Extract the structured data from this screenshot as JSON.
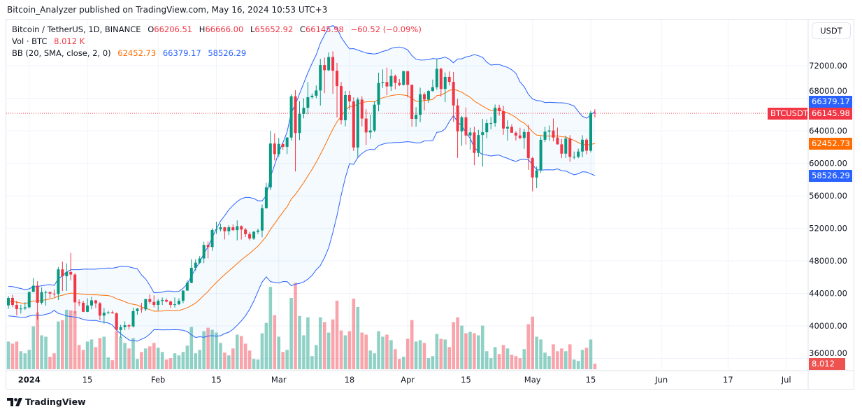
{
  "header": {
    "published": "Bitcoin_Analyzer published on TradingView.com, May 16, 2024 10:53 UTC+3"
  },
  "legend": {
    "symbol": "Bitcoin / TetherUS, 1D, BINANCE",
    "open_label": "O",
    "open": "66206.51",
    "high_label": "H",
    "high": "66666.00",
    "low_label": "L",
    "low": "65652.92",
    "close_label": "C",
    "close": "66145.98",
    "change": "−60.52 (−0.09%)",
    "vol_label": "Vol · BTC",
    "vol": "8.012 K",
    "bb_label": "BB (20, SMA, close, 2, 0)",
    "bb_basis": "62452.73",
    "bb_upper": "66379.17",
    "bb_lower": "58526.29"
  },
  "axis": {
    "currency_button": "USDT",
    "price_ticks": [
      "72000.00",
      "68000.00",
      "64000.00",
      "60000.00",
      "56000.00",
      "52000.00",
      "48000.00",
      "44000.00",
      "40000.00",
      "36000.00"
    ],
    "time_ticks": [
      {
        "label": "2024",
        "date": "2024-01-01",
        "bold": true
      },
      {
        "label": "15",
        "date": "2024-01-15"
      },
      {
        "label": "Feb",
        "date": "2024-02-01"
      },
      {
        "label": "15",
        "date": "2024-02-15"
      },
      {
        "label": "Mar",
        "date": "2024-03-01"
      },
      {
        "label": "18",
        "date": "2024-03-18"
      },
      {
        "label": "Apr",
        "date": "2024-04-01"
      },
      {
        "label": "15",
        "date": "2024-04-15"
      },
      {
        "label": "May",
        "date": "2024-05-01"
      },
      {
        "label": "15",
        "date": "2024-05-15"
      },
      {
        "label": "Jun",
        "date": "2024-06-01"
      },
      {
        "label": "17",
        "date": "2024-06-17"
      },
      {
        "label": "Jul",
        "date": "2024-07-01"
      }
    ],
    "labels": {
      "bb_upper": "66379.17",
      "symbol_tag": "BTCUSDT",
      "last_price": "66145.98",
      "bb_basis": "62452.73",
      "bb_lower": "58526.29",
      "volume": "8.012 K"
    }
  },
  "footer": {
    "brand": "TradingView"
  },
  "colors": {
    "up": "#089981",
    "down": "#f23645",
    "bb_band": "#2962ff",
    "bb_basis": "#ff6d00",
    "last_price": "#f23645"
  },
  "chart_data": {
    "type": "candlestick",
    "symbol": "BTCUSDT",
    "interval": "1D",
    "ylim": [
      35000,
      75500
    ],
    "grid": true,
    "indicators": [
      "Volume",
      "Bollinger Bands (20, SMA, close, 2, 0)"
    ],
    "columns": [
      "date",
      "open",
      "high",
      "low",
      "close",
      "volume_k"
    ],
    "candles": [
      [
        "2023-12-27",
        42520,
        43680,
        42100,
        43442,
        40
      ],
      [
        "2023-12-28",
        43442,
        43800,
        42300,
        42581,
        37
      ],
      [
        "2023-12-29",
        42581,
        43100,
        41300,
        42066,
        40
      ],
      [
        "2023-12-30",
        42066,
        42600,
        41520,
        42140,
        26
      ],
      [
        "2023-12-31",
        42140,
        42900,
        41960,
        42283,
        23
      ],
      [
        "2024-01-01",
        42283,
        44180,
        42180,
        44179,
        28
      ],
      [
        "2024-01-02",
        44179,
        45880,
        44180,
        44946,
        62
      ],
      [
        "2024-01-03",
        44946,
        45500,
        40750,
        42845,
        82
      ],
      [
        "2024-01-04",
        42845,
        44730,
        42630,
        44151,
        49
      ],
      [
        "2024-01-05",
        44151,
        44330,
        42500,
        44162,
        47
      ],
      [
        "2024-01-06",
        44162,
        44200,
        43400,
        43968,
        18
      ],
      [
        "2024-01-07",
        43968,
        44480,
        43560,
        43929,
        23
      ],
      [
        "2024-01-08",
        43929,
        47250,
        43180,
        46951,
        69
      ],
      [
        "2024-01-09",
        46951,
        47890,
        44300,
        46105,
        71
      ],
      [
        "2024-01-10",
        46105,
        47690,
        44300,
        46632,
        86
      ],
      [
        "2024-01-11",
        46632,
        48970,
        45600,
        46314,
        85
      ],
      [
        "2024-01-12",
        46314,
        46500,
        41500,
        42893,
        84
      ],
      [
        "2024-01-13",
        42893,
        43250,
        42440,
        42842,
        35
      ],
      [
        "2024-01-14",
        42842,
        43080,
        41700,
        41732,
        28
      ],
      [
        "2024-01-15",
        41732,
        43400,
        41700,
        42511,
        40
      ],
      [
        "2024-01-16",
        42511,
        43580,
        42050,
        43137,
        43
      ],
      [
        "2024-01-17",
        43137,
        43200,
        42200,
        42776,
        32
      ],
      [
        "2024-01-18",
        42776,
        42930,
        40680,
        41262,
        45
      ],
      [
        "2024-01-19",
        41262,
        42200,
        40280,
        41618,
        47
      ],
      [
        "2024-01-20",
        41618,
        41850,
        41440,
        41665,
        17
      ],
      [
        "2024-01-21",
        41665,
        41900,
        41500,
        41545,
        13
      ],
      [
        "2024-01-22",
        41545,
        41650,
        39430,
        39507,
        55
      ],
      [
        "2024-01-23",
        39507,
        40130,
        38550,
        39845,
        47
      ],
      [
        "2024-01-24",
        39845,
        40550,
        39480,
        40077,
        38
      ],
      [
        "2024-01-25",
        40077,
        40250,
        39550,
        39934,
        30
      ],
      [
        "2024-01-26",
        39934,
        42250,
        39800,
        41816,
        45
      ],
      [
        "2024-01-27",
        41816,
        42200,
        41390,
        42120,
        15
      ],
      [
        "2024-01-28",
        42120,
        42840,
        41620,
        42031,
        25
      ],
      [
        "2024-01-29",
        42031,
        43300,
        41800,
        43300,
        30
      ],
      [
        "2024-01-30",
        43300,
        43880,
        42680,
        42946,
        33
      ],
      [
        "2024-01-31",
        42946,
        43750,
        42270,
        42582,
        38
      ],
      [
        "2024-02-01",
        42582,
        43290,
        41880,
        43075,
        31
      ],
      [
        "2024-02-02",
        43075,
        43490,
        42580,
        43185,
        25
      ],
      [
        "2024-02-03",
        43185,
        43380,
        42880,
        42993,
        14
      ],
      [
        "2024-02-04",
        42993,
        43120,
        42220,
        42583,
        16
      ],
      [
        "2024-02-05",
        42583,
        43500,
        42260,
        42658,
        23
      ],
      [
        "2024-02-06",
        42658,
        43400,
        42570,
        43084,
        20
      ],
      [
        "2024-02-07",
        43084,
        44380,
        42790,
        44339,
        25
      ],
      [
        "2024-02-08",
        44339,
        45600,
        44330,
        45293,
        34
      ],
      [
        "2024-02-09",
        45293,
        48200,
        45240,
        47147,
        61
      ],
      [
        "2024-02-10",
        47147,
        48170,
        46800,
        47771,
        23
      ],
      [
        "2024-02-11",
        47771,
        48590,
        47630,
        48293,
        28
      ],
      [
        "2024-02-12",
        48293,
        50340,
        47710,
        49958,
        55
      ],
      [
        "2024-02-13",
        49958,
        50370,
        48300,
        49699,
        60
      ],
      [
        "2024-02-14",
        49699,
        52000,
        49230,
        51795,
        57
      ],
      [
        "2024-02-15",
        51795,
        52820,
        51310,
        51880,
        53
      ],
      [
        "2024-02-16",
        51880,
        52580,
        51620,
        52124,
        38
      ],
      [
        "2024-02-17",
        52124,
        52200,
        50630,
        51642,
        24
      ],
      [
        "2024-02-18",
        51642,
        52370,
        51160,
        52137,
        20
      ],
      [
        "2024-02-19",
        52137,
        52490,
        51680,
        51774,
        30
      ],
      [
        "2024-02-20",
        51774,
        52980,
        50520,
        52258,
        50
      ],
      [
        "2024-02-21",
        52258,
        52370,
        50620,
        51849,
        48
      ],
      [
        "2024-02-22",
        51849,
        52040,
        50920,
        51288,
        37
      ],
      [
        "2024-02-23",
        51288,
        51550,
        50520,
        50744,
        27
      ],
      [
        "2024-02-24",
        50744,
        51700,
        50580,
        51568,
        15
      ],
      [
        "2024-02-25",
        51568,
        51950,
        51280,
        51728,
        14
      ],
      [
        "2024-02-26",
        51728,
        54920,
        50900,
        54476,
        52
      ],
      [
        "2024-02-27",
        54476,
        57580,
        54440,
        57037,
        67
      ],
      [
        "2024-02-28",
        57037,
        64000,
        56690,
        62432,
        119
      ],
      [
        "2024-02-29",
        62432,
        63680,
        60360,
        61130,
        78
      ],
      [
        "2024-03-01",
        61130,
        63110,
        60780,
        62387,
        47
      ],
      [
        "2024-03-02",
        62387,
        62430,
        61660,
        62029,
        25
      ],
      [
        "2024-03-03",
        62029,
        63230,
        61150,
        63168,
        28
      ],
      [
        "2024-03-04",
        63168,
        68500,
        62800,
        68245,
        103
      ],
      [
        "2024-03-05",
        68245,
        69000,
        59000,
        63724,
        125
      ],
      [
        "2024-03-06",
        63724,
        67640,
        62850,
        66074,
        77
      ],
      [
        "2024-03-07",
        66074,
        67990,
        65530,
        66823,
        49
      ],
      [
        "2024-03-08",
        66823,
        69990,
        66050,
        68124,
        75
      ],
      [
        "2024-03-09",
        68124,
        68590,
        67920,
        68313,
        19
      ],
      [
        "2024-03-10",
        68313,
        69570,
        68000,
        68955,
        35
      ],
      [
        "2024-03-11",
        68955,
        72850,
        67100,
        72078,
        75
      ],
      [
        "2024-03-12",
        72078,
        73000,
        68620,
        71452,
        68
      ],
      [
        "2024-03-13",
        71452,
        73650,
        71330,
        73072,
        53
      ],
      [
        "2024-03-14",
        73072,
        73777,
        68550,
        71388,
        72
      ],
      [
        "2024-03-15",
        71388,
        72360,
        65630,
        69499,
        99
      ],
      [
        "2024-03-16",
        69499,
        70000,
        64780,
        65300,
        56
      ],
      [
        "2024-03-17",
        65300,
        68900,
        64540,
        68393,
        49
      ],
      [
        "2024-03-18",
        68393,
        68930,
        66580,
        67609,
        55
      ],
      [
        "2024-03-19",
        67609,
        68100,
        61520,
        61937,
        102
      ],
      [
        "2024-03-20",
        61937,
        68100,
        60780,
        67840,
        90
      ],
      [
        "2024-03-21",
        67840,
        68240,
        64530,
        65501,
        53
      ],
      [
        "2024-03-22",
        65501,
        66650,
        62250,
        63796,
        50
      ],
      [
        "2024-03-23",
        63796,
        65980,
        63000,
        64037,
        27
      ],
      [
        "2024-03-24",
        64037,
        67620,
        63820,
        67211,
        23
      ],
      [
        "2024-03-25",
        67211,
        71150,
        66390,
        69880,
        55
      ],
      [
        "2024-03-26",
        69880,
        71560,
        69280,
        69988,
        47
      ],
      [
        "2024-03-27",
        69988,
        71770,
        68380,
        69455,
        50
      ],
      [
        "2024-03-28",
        69455,
        71550,
        68900,
        70744,
        42
      ],
      [
        "2024-03-29",
        70744,
        70920,
        69100,
        69892,
        29
      ],
      [
        "2024-03-30",
        69892,
        70360,
        69500,
        69645,
        15
      ],
      [
        "2024-03-31",
        69645,
        71370,
        69570,
        71334,
        18
      ],
      [
        "2024-04-01",
        71334,
        71340,
        68100,
        69649,
        44
      ],
      [
        "2024-04-02",
        69649,
        69690,
        64500,
        65463,
        71
      ],
      [
        "2024-04-03",
        65463,
        66900,
        64500,
        65963,
        40
      ],
      [
        "2024-04-04",
        65963,
        69300,
        65060,
        68488,
        42
      ],
      [
        "2024-04-05",
        68488,
        68720,
        66500,
        67837,
        38
      ],
      [
        "2024-04-06",
        67837,
        69000,
        67440,
        68896,
        16
      ],
      [
        "2024-04-07",
        68896,
        70300,
        68800,
        69360,
        19
      ],
      [
        "2024-04-08",
        69360,
        72800,
        69050,
        71620,
        51
      ],
      [
        "2024-04-09",
        71620,
        71760,
        68210,
        69146,
        44
      ],
      [
        "2024-04-10",
        69146,
        71170,
        67520,
        70631,
        43
      ],
      [
        "2024-04-11",
        70631,
        71300,
        69560,
        70006,
        32
      ],
      [
        "2024-04-12",
        70006,
        71230,
        65090,
        67116,
        68
      ],
      [
        "2024-04-13",
        67116,
        67930,
        60660,
        63924,
        75
      ],
      [
        "2024-04-14",
        63924,
        65840,
        62130,
        65661,
        63
      ],
      [
        "2024-04-15",
        65661,
        66870,
        62300,
        63419,
        52
      ],
      [
        "2024-04-16",
        63419,
        64380,
        61700,
        63793,
        54
      ],
      [
        "2024-04-17",
        63793,
        64500,
        59770,
        61277,
        52
      ],
      [
        "2024-04-18",
        61277,
        64100,
        60800,
        63470,
        49
      ],
      [
        "2024-04-19",
        63470,
        65450,
        59600,
        63818,
        63
      ],
      [
        "2024-04-20",
        63818,
        65400,
        63090,
        64941,
        26
      ],
      [
        "2024-04-21",
        64941,
        65700,
        64200,
        64941,
        16
      ],
      [
        "2024-04-22",
        64941,
        67230,
        64500,
        66837,
        32
      ],
      [
        "2024-04-23",
        66837,
        67200,
        65850,
        66407,
        22
      ],
      [
        "2024-04-24",
        66407,
        67080,
        63500,
        64276,
        35
      ],
      [
        "2024-04-25",
        64276,
        65300,
        62800,
        64481,
        30
      ],
      [
        "2024-04-26",
        64481,
        64800,
        63800,
        63755,
        21
      ],
      [
        "2024-04-27",
        63755,
        63930,
        62800,
        63419,
        19
      ],
      [
        "2024-04-28",
        63419,
        64360,
        62950,
        63113,
        16
      ],
      [
        "2024-04-29",
        63113,
        64230,
        61800,
        63841,
        29
      ],
      [
        "2024-04-30",
        63841,
        64730,
        59190,
        60636,
        65
      ],
      [
        "2024-05-01",
        60636,
        60780,
        56550,
        58254,
        76
      ],
      [
        "2024-05-02",
        58254,
        59600,
        56940,
        59122,
        47
      ],
      [
        "2024-05-03",
        59122,
        63300,
        58820,
        62889,
        43
      ],
      [
        "2024-05-04",
        62889,
        64500,
        62600,
        63891,
        24
      ],
      [
        "2024-05-05",
        63891,
        64650,
        62800,
        64031,
        19
      ],
      [
        "2024-05-06",
        64031,
        65500,
        62700,
        63161,
        36
      ],
      [
        "2024-05-07",
        63161,
        64400,
        62300,
        62334,
        26
      ],
      [
        "2024-05-08",
        62334,
        62990,
        60630,
        61187,
        30
      ],
      [
        "2024-05-09",
        61187,
        63400,
        60650,
        63049,
        26
      ],
      [
        "2024-05-10",
        63049,
        63460,
        60200,
        60792,
        36
      ],
      [
        "2024-05-11",
        60792,
        61450,
        60500,
        60793,
        14
      ],
      [
        "2024-05-12",
        60793,
        61800,
        60630,
        61448,
        12
      ],
      [
        "2024-05-13",
        61448,
        63450,
        60750,
        62901,
        28
      ],
      [
        "2024-05-14",
        62901,
        63100,
        61100,
        61552,
        31
      ],
      [
        "2024-05-15",
        61552,
        66450,
        61330,
        66206,
        43
      ],
      [
        "2024-05-16",
        66206.51,
        66666.0,
        65652.92,
        66145.98,
        8.012
      ]
    ]
  }
}
